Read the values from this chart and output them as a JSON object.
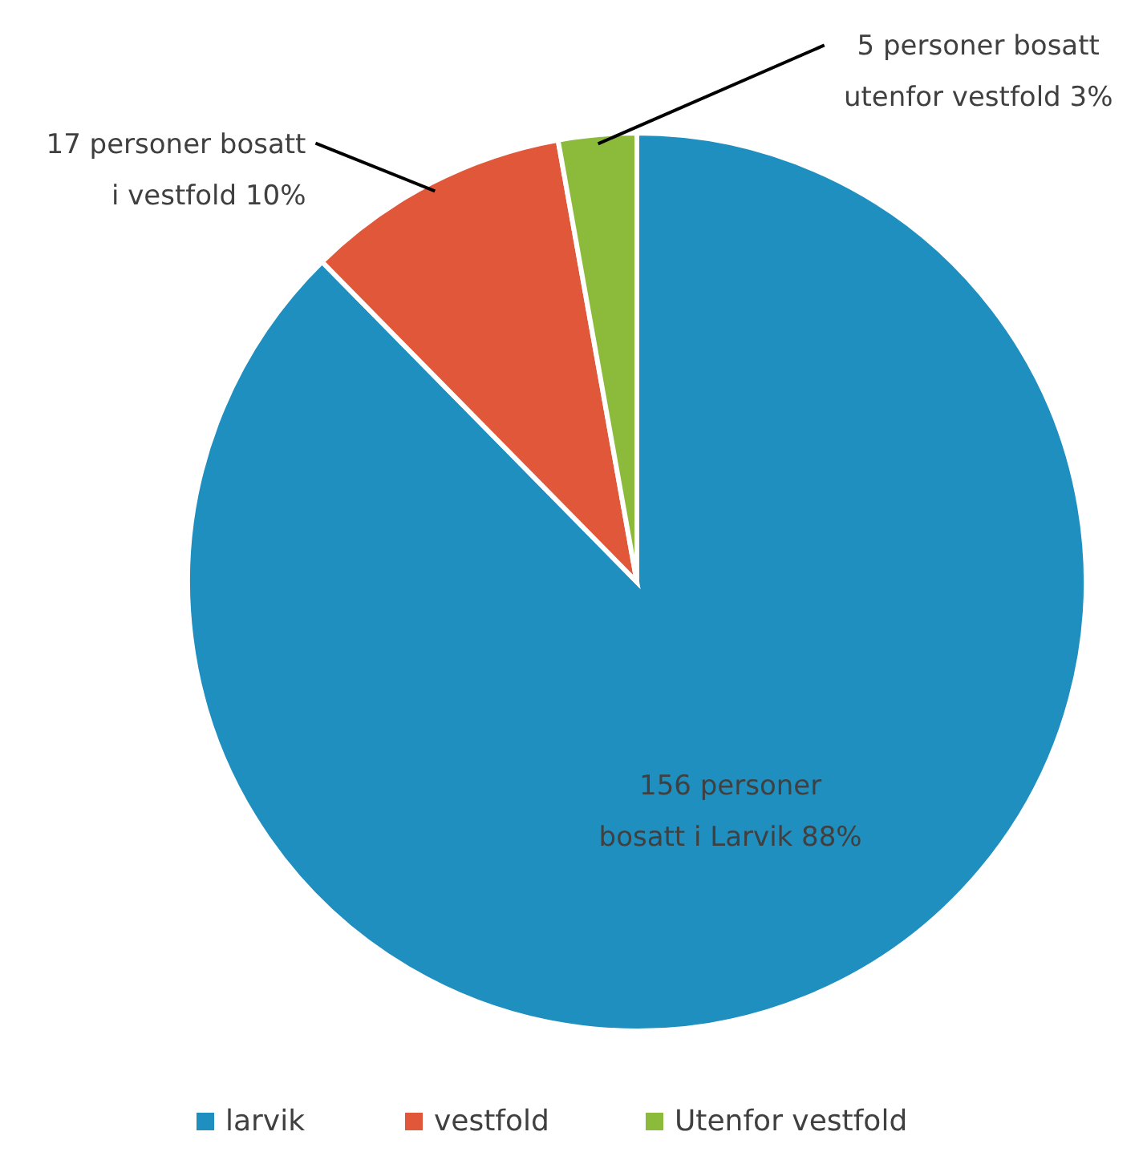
{
  "chart_data": {
    "type": "pie",
    "categories": [
      "larvik",
      "vestfold",
      "Utenfor vestfold"
    ],
    "values": [
      156,
      17,
      5
    ],
    "colors": [
      "#1f8fc0",
      "#e0573a",
      "#8cba3a"
    ],
    "value_labels": [
      "156 personer\nbosatt i Larvik 88%",
      "17 personer bosatt\ni vestfold 10%",
      "5 personer bosatt\nutenfor vestfold 3%"
    ],
    "legend": "bottom"
  }
}
